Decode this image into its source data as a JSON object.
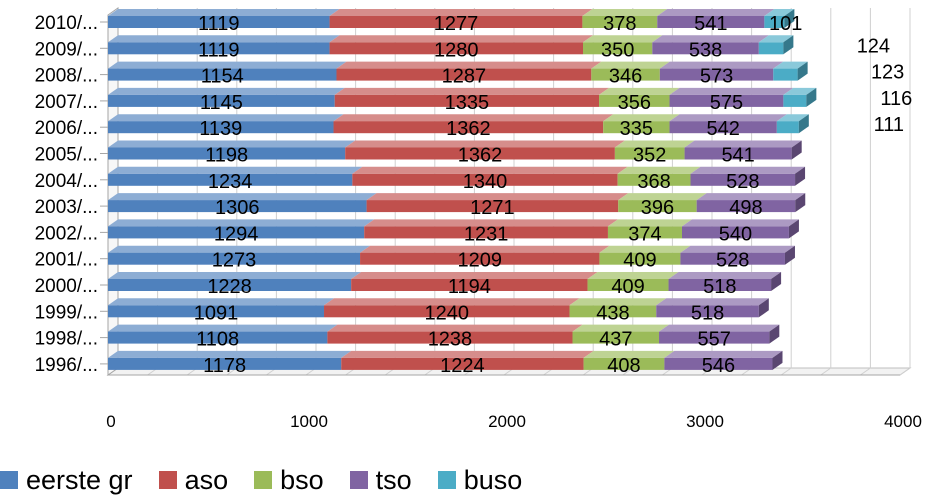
{
  "chart_data": {
    "type": "bar",
    "orientation": "horizontal",
    "stacked": true,
    "three_d": true,
    "categories": [
      "2010/...",
      "2009/...",
      "2008/...",
      "2007/...",
      "2006/...",
      "2005/...",
      "2004/...",
      "2003/...",
      "2002/...",
      "2001/...",
      "2000/...",
      "1999/...",
      "1998/...",
      "1996/..."
    ],
    "series": [
      {
        "name": "eerste gr",
        "color": "#4f81bd",
        "values": [
          1119,
          1119,
          1154,
          1145,
          1139,
          1198,
          1234,
          1306,
          1294,
          1273,
          1228,
          1091,
          1108,
          1178
        ]
      },
      {
        "name": "aso",
        "color": "#c0504d",
        "values": [
          1277,
          1280,
          1287,
          1335,
          1362,
          1362,
          1340,
          1271,
          1231,
          1209,
          1194,
          1240,
          1238,
          1224
        ]
      },
      {
        "name": "bso",
        "color": "#9bbb59",
        "values": [
          378,
          350,
          346,
          356,
          335,
          352,
          368,
          396,
          374,
          409,
          409,
          438,
          437,
          408
        ]
      },
      {
        "name": "tso",
        "color": "#8064a2",
        "values": [
          541,
          538,
          573,
          575,
          542,
          541,
          528,
          498,
          540,
          528,
          518,
          518,
          557,
          546
        ]
      },
      {
        "name": "buso",
        "color": "#4bacc6",
        "values": [
          101,
          124,
          123,
          116,
          111,
          null,
          null,
          null,
          null,
          null,
          null,
          null,
          null,
          null
        ]
      }
    ],
    "xlim": [
      0,
      4000
    ],
    "xticks": [
      "0",
      "1000",
      "2000",
      "3000",
      "4000"
    ],
    "grid": true,
    "legend_position": "bottom",
    "title": "",
    "xlabel": "",
    "ylabel": ""
  }
}
